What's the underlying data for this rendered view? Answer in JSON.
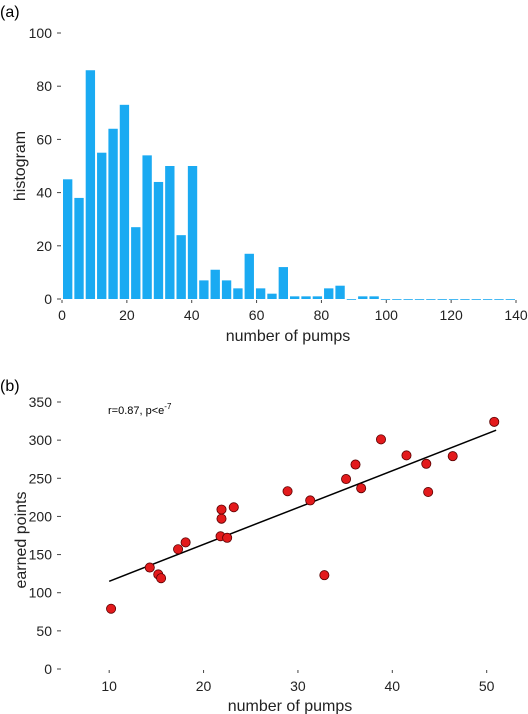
{
  "chart_data": [
    {
      "type": "bar",
      "panel_label": "(a)",
      "xlabel": "number of pumps",
      "ylabel": "histogram",
      "xlim": [
        0,
        140
      ],
      "ylim": [
        0,
        100
      ],
      "xticks": [
        "0",
        "20",
        "40",
        "60",
        "80",
        "100",
        "120",
        "140"
      ],
      "yticks": [
        "0",
        "20",
        "40",
        "60",
        "80",
        "100"
      ],
      "bar_color": "#1aaaf2",
      "bin_width": 3.5,
      "bin_start": 0,
      "values": [
        45,
        38,
        86,
        55,
        64,
        73,
        27,
        54,
        44,
        50,
        24,
        50,
        7,
        11,
        7,
        4,
        17,
        4,
        2,
        12,
        1,
        1,
        1,
        4,
        5,
        0,
        1,
        1,
        0,
        0,
        0,
        0,
        0,
        0,
        0,
        0,
        0,
        0,
        0,
        0
      ]
    },
    {
      "type": "scatter",
      "panel_label": "(b)",
      "xlabel": "number of pumps",
      "ylabel": "earned points",
      "annotation_r": "r=0.87,  p<e",
      "annotation_exp": "-7",
      "xlim": [
        5,
        53
      ],
      "ylim": [
        0,
        350
      ],
      "xticks": [
        "10",
        "20",
        "30",
        "40",
        "50"
      ],
      "yticks": [
        "0",
        "50",
        "100",
        "150",
        "200",
        "250",
        "300",
        "350"
      ],
      "marker_color": "#e31a1c",
      "fit_line": {
        "x": [
          10,
          51
        ],
        "y": [
          115,
          313
        ]
      },
      "points": [
        {
          "x": 10.2,
          "y": 79
        },
        {
          "x": 14.3,
          "y": 133
        },
        {
          "x": 15.2,
          "y": 124
        },
        {
          "x": 15.5,
          "y": 119
        },
        {
          "x": 17.3,
          "y": 157
        },
        {
          "x": 18.1,
          "y": 166
        },
        {
          "x": 21.9,
          "y": 209
        },
        {
          "x": 21.9,
          "y": 197
        },
        {
          "x": 21.8,
          "y": 174
        },
        {
          "x": 22.5,
          "y": 172
        },
        {
          "x": 23.2,
          "y": 212
        },
        {
          "x": 28.9,
          "y": 233
        },
        {
          "x": 31.3,
          "y": 221
        },
        {
          "x": 32.8,
          "y": 123
        },
        {
          "x": 35.1,
          "y": 249
        },
        {
          "x": 36.1,
          "y": 268
        },
        {
          "x": 36.7,
          "y": 237
        },
        {
          "x": 38.8,
          "y": 301
        },
        {
          "x": 41.5,
          "y": 280
        },
        {
          "x": 43.6,
          "y": 269
        },
        {
          "x": 43.8,
          "y": 232
        },
        {
          "x": 46.4,
          "y": 279
        },
        {
          "x": 50.8,
          "y": 324
        }
      ]
    }
  ]
}
